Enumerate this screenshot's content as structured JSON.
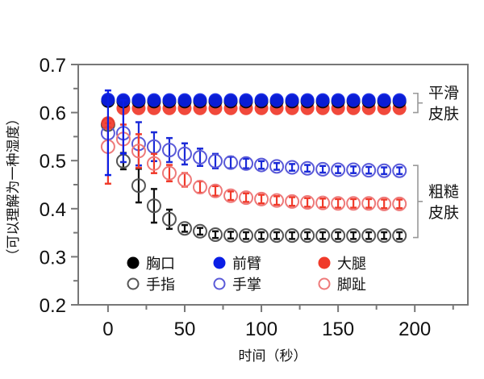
{
  "chart_data": {
    "type": "scatter",
    "title": "",
    "xlabel": "时间（秒）",
    "ylabel": "（可以理解为一种湿度）",
    "xlim": [
      -19.4,
      234.6
    ],
    "ylim": [
      0.2,
      0.7
    ],
    "x_ticks": [
      0,
      50,
      100,
      150,
      200
    ],
    "x_tick_labels": [
      "0",
      "50",
      "100",
      "150",
      "200"
    ],
    "x_minor_ticks": [
      25,
      75,
      125,
      175,
      225
    ],
    "y_ticks": [
      0.2,
      0.3,
      0.4,
      0.5,
      0.6,
      0.7
    ],
    "y_tick_labels": [
      "0.2",
      "0.3",
      "0.4",
      "0.5",
      "0.6",
      "0.7"
    ],
    "y_minor_ticks": [
      0.25,
      0.35,
      0.45,
      0.55,
      0.65
    ],
    "grid": false,
    "legend_position": "bottom-center",
    "x": [
      0,
      10,
      20,
      30,
      40,
      50,
      60,
      70,
      80,
      90,
      100,
      110,
      120,
      130,
      140,
      150,
      160,
      170,
      180,
      190
    ],
    "series": [
      {
        "name": "胸口",
        "marker": "filled",
        "color": "#000000",
        "values": [
          0.624,
          0.623,
          0.623,
          0.623,
          0.623,
          0.623,
          0.623,
          0.623,
          0.623,
          0.623,
          0.623,
          0.623,
          0.623,
          0.623,
          0.623,
          0.623,
          0.623,
          0.623,
          0.623,
          0.623
        ],
        "errors": [
          0.01,
          0.005,
          0.005,
          0.005,
          0.005,
          0.005,
          0.005,
          0.005,
          0.005,
          0.005,
          0.005,
          0.005,
          0.005,
          0.005,
          0.005,
          0.005,
          0.005,
          0.005,
          0.005,
          0.005
        ]
      },
      {
        "name": "前臂",
        "marker": "filled",
        "color": "#0a1ee6",
        "values": [
          0.627,
          0.626,
          0.626,
          0.626,
          0.626,
          0.626,
          0.626,
          0.626,
          0.626,
          0.626,
          0.626,
          0.626,
          0.626,
          0.626,
          0.626,
          0.626,
          0.626,
          0.626,
          0.626,
          0.626
        ],
        "errors": [
          0.085,
          0.0,
          0.0,
          0.0,
          0.0,
          0.0,
          0.0,
          0.0,
          0.0,
          0.0,
          0.0,
          0.0,
          0.0,
          0.0,
          0.0,
          0.0,
          0.0,
          0.0,
          0.0,
          0.0
        ],
        "error_low": [
          0.47,
          0.515,
          null,
          null,
          null,
          null,
          null,
          null,
          null,
          null,
          null,
          null,
          null,
          null,
          null,
          null,
          null,
          null,
          null,
          null
        ],
        "error_high": [
          0.646,
          0.626,
          null,
          null,
          null,
          null,
          null,
          null,
          null,
          null,
          null,
          null,
          null,
          null,
          null,
          null,
          null,
          null,
          null,
          null
        ]
      },
      {
        "name": "大腿",
        "marker": "filled",
        "color": "#f03a2a",
        "values": [
          0.578,
          0.609,
          0.609,
          0.609,
          0.609,
          0.609,
          0.609,
          0.609,
          0.609,
          0.609,
          0.609,
          0.609,
          0.609,
          0.609,
          0.609,
          0.609,
          0.609,
          0.609,
          0.609,
          0.609
        ],
        "errors": [
          0.0,
          0.0,
          0.0,
          0.0,
          0.0,
          0.0,
          0.0,
          0.0,
          0.0,
          0.0,
          0.0,
          0.0,
          0.0,
          0.0,
          0.0,
          0.0,
          0.0,
          0.0,
          0.0,
          0.0
        ],
        "error_low": [
          0.452,
          null,
          null,
          null,
          null,
          null,
          null,
          null,
          null,
          null,
          null,
          null,
          null,
          null,
          null,
          null,
          null,
          null,
          null,
          null
        ],
        "error_high": [
          0.578,
          null,
          null,
          null,
          null,
          null,
          null,
          null,
          null,
          null,
          null,
          null,
          null,
          null,
          null,
          null,
          null,
          null,
          null,
          null
        ]
      },
      {
        "name": "手指",
        "marker": "open",
        "color": "#555555",
        "errcolor": "#111111",
        "values": [
          0.575,
          0.499,
          0.448,
          0.406,
          0.378,
          0.359,
          0.353,
          0.346,
          0.345,
          0.344,
          0.344,
          0.344,
          0.344,
          0.344,
          0.344,
          0.344,
          0.344,
          0.344,
          0.344,
          0.344
        ],
        "errors": [
          0.0,
          0.017,
          0.035,
          0.035,
          0.02,
          0.007,
          0.007,
          0.007,
          0.007,
          0.007,
          0.007,
          0.007,
          0.007,
          0.007,
          0.007,
          0.007,
          0.007,
          0.007,
          0.007,
          0.007
        ]
      },
      {
        "name": "手掌",
        "marker": "open",
        "color": "#5a5ad8",
        "errcolor": "#1a2ad8",
        "values": [
          0.557,
          0.557,
          0.535,
          0.529,
          0.522,
          0.514,
          0.507,
          0.499,
          0.496,
          0.494,
          0.491,
          0.488,
          0.486,
          0.484,
          0.482,
          0.481,
          0.481,
          0.48,
          0.479,
          0.479
        ],
        "errors": [
          0.0,
          0.06,
          0.045,
          0.03,
          0.025,
          0.022,
          0.018,
          0.015,
          0.012,
          0.01,
          0.008,
          0.007,
          0.007,
          0.007,
          0.007,
          0.007,
          0.007,
          0.007,
          0.007,
          0.007
        ]
      },
      {
        "name": "脚趾",
        "marker": "open",
        "color": "#ee7a7a",
        "errcolor": "#f03a2a",
        "values": [
          0.529,
          0.545,
          0.52,
          0.494,
          0.474,
          0.46,
          0.445,
          0.437,
          0.427,
          0.423,
          0.42,
          0.417,
          0.415,
          0.413,
          0.412,
          0.411,
          0.411,
          0.411,
          0.41,
          0.41
        ],
        "errors": [
          0.0,
          0.03,
          0.035,
          0.02,
          0.017,
          0.014,
          0.012,
          0.01,
          0.009,
          0.009,
          0.009,
          0.009,
          0.009,
          0.009,
          0.009,
          0.009,
          0.009,
          0.009,
          0.009,
          0.009
        ]
      }
    ],
    "annotations": [
      {
        "text_lines": [
          "平滑",
          "皮肤"
        ],
        "bracket_y": [
          0.64,
          0.6
        ],
        "target": "filled"
      },
      {
        "text_lines": [
          "粗糙",
          "皮肤"
        ],
        "bracket_y": [
          0.49,
          0.34
        ],
        "target": "open"
      }
    ]
  }
}
